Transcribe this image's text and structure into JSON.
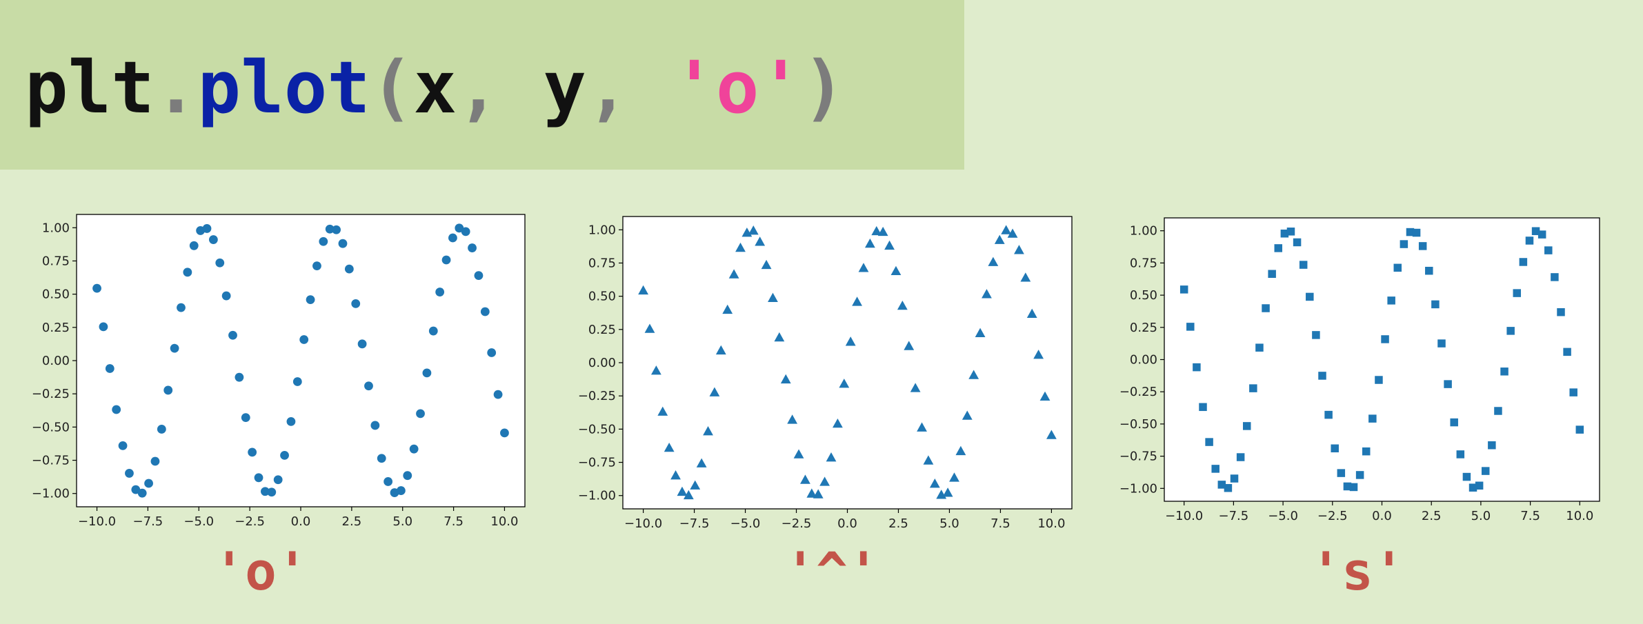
{
  "code": {
    "tokens": [
      {
        "text": "plt",
        "kind": "name"
      },
      {
        "text": ".",
        "kind": "punct"
      },
      {
        "text": "plot",
        "kind": "func"
      },
      {
        "text": "(",
        "kind": "punct"
      },
      {
        "text": "x",
        "kind": "name"
      },
      {
        "text": ", ",
        "kind": "punct"
      },
      {
        "text": "y",
        "kind": "name"
      },
      {
        "text": ", ",
        "kind": "punct"
      },
      {
        "text": "'o'",
        "kind": "string"
      },
      {
        "text": ")",
        "kind": "punct"
      }
    ]
  },
  "colors": {
    "background": "#dfeccc",
    "banner": "#c8dca6",
    "marker": "#1f77b4",
    "caption": "#c35449"
  },
  "chart_data": [
    {
      "type": "scatter",
      "marker": "o",
      "marker_shape": "circle",
      "caption": "'o'",
      "function": "y = sin(x)",
      "x_range": [
        -10,
        10
      ],
      "n_points": 64,
      "xlim": [
        -11,
        11
      ],
      "ylim": [
        -1.1,
        1.1
      ],
      "x_ticks": [
        -10.0,
        -7.5,
        -5.0,
        -2.5,
        0.0,
        2.5,
        5.0,
        7.5,
        10.0
      ],
      "x_tick_labels": [
        "−10.0",
        "−7.5",
        "−5.0",
        "−2.5",
        "0.0",
        "2.5",
        "5.0",
        "7.5",
        "10.0"
      ],
      "y_ticks": [
        1.0,
        0.75,
        0.5,
        0.25,
        0.0,
        -0.25,
        -0.5,
        -0.75,
        -1.0
      ],
      "y_tick_labels": [
        "1.00",
        "0.75",
        "0.50",
        "0.25",
        "0.00",
        "−0.25",
        "−0.50",
        "−0.75",
        "−1.00"
      ],
      "title": "",
      "xlabel": "",
      "ylabel": "",
      "grid": false
    },
    {
      "type": "scatter",
      "marker": "^",
      "marker_shape": "triangle",
      "caption": "'^'",
      "function": "y = sin(x)",
      "x_range": [
        -10,
        10
      ],
      "n_points": 64,
      "xlim": [
        -11,
        11
      ],
      "ylim": [
        -1.1,
        1.1
      ],
      "x_ticks": [
        -10.0,
        -7.5,
        -5.0,
        -2.5,
        0.0,
        2.5,
        5.0,
        7.5,
        10.0
      ],
      "x_tick_labels": [
        "−10.0",
        "−7.5",
        "−5.0",
        "−2.5",
        "0.0",
        "2.5",
        "5.0",
        "7.5",
        "10.0"
      ],
      "y_ticks": [
        1.0,
        0.75,
        0.5,
        0.25,
        0.0,
        -0.25,
        -0.5,
        -0.75,
        -1.0
      ],
      "y_tick_labels": [
        "1.00",
        "0.75",
        "0.50",
        "0.25",
        "0.00",
        "−0.25",
        "−0.50",
        "−0.75",
        "−1.00"
      ],
      "title": "",
      "xlabel": "",
      "ylabel": "",
      "grid": false
    },
    {
      "type": "scatter",
      "marker": "s",
      "marker_shape": "square",
      "caption": "'s'",
      "function": "y = sin(x)",
      "x_range": [
        -10,
        10
      ],
      "n_points": 64,
      "xlim": [
        -11,
        11
      ],
      "ylim": [
        -1.1,
        1.1
      ],
      "x_ticks": [
        -10.0,
        -7.5,
        -5.0,
        -2.5,
        0.0,
        2.5,
        5.0,
        7.5,
        10.0
      ],
      "x_tick_labels": [
        "−10.0",
        "−7.5",
        "−5.0",
        "−2.5",
        "0.0",
        "2.5",
        "5.0",
        "7.5",
        "10.0"
      ],
      "y_ticks": [
        1.0,
        0.75,
        0.5,
        0.25,
        0.0,
        -0.25,
        -0.5,
        -0.75,
        -1.0
      ],
      "y_tick_labels": [
        "1.00",
        "0.75",
        "0.50",
        "0.25",
        "0.00",
        "−0.25",
        "−0.50",
        "−0.75",
        "−1.00"
      ],
      "title": "",
      "xlabel": "",
      "ylabel": "",
      "grid": false
    }
  ]
}
